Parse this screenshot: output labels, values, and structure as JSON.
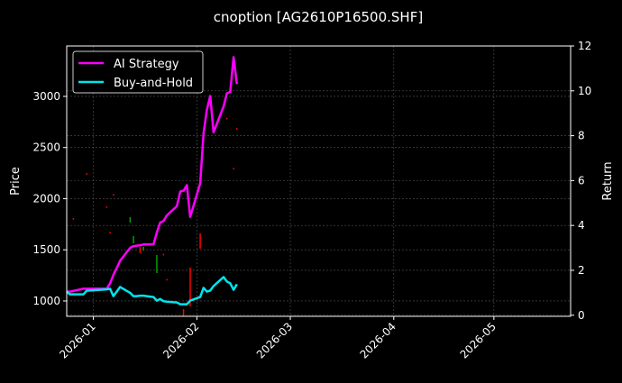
{
  "chart_data": {
    "type": "line",
    "title": "cnoption [AG2610P16500.SHF]",
    "xlabel": "",
    "ylabel_left": "Price",
    "ylabel_right": "Return",
    "xlim": [
      "2025-12-24",
      "2026-05-24"
    ],
    "ylim_left": [
      850,
      3493
    ],
    "ylim_right": [
      -0.05,
      12
    ],
    "x_ticks": [
      "2026-01-01",
      "2026-02-01",
      "2026-03-01",
      "2026-04-01",
      "2026-05-01"
    ],
    "x_tick_labels": [
      "2026-01",
      "2026-02",
      "2026-03",
      "2026-04",
      "2026-05"
    ],
    "y_left_ticks": [
      1000,
      1500,
      2000,
      2500,
      3000
    ],
    "y_right_ticks": [
      0,
      2,
      4,
      6,
      8,
      10,
      12
    ],
    "grid": true,
    "legend_position": "top-left",
    "background": "#000000",
    "x": [
      "2025-12-24",
      "2025-12-25",
      "2025-12-29",
      "2025-12-30",
      "2026-01-05",
      "2026-01-06",
      "2026-01-07",
      "2026-01-08",
      "2026-01-09",
      "2026-01-12",
      "2026-01-13",
      "2026-01-14",
      "2026-01-15",
      "2026-01-16",
      "2026-01-19",
      "2026-01-20",
      "2026-01-21",
      "2026-01-22",
      "2026-01-23",
      "2026-01-26",
      "2026-01-27",
      "2026-01-28",
      "2026-01-29",
      "2026-01-30",
      "2026-02-02",
      "2026-02-03",
      "2026-02-04",
      "2026-02-05",
      "2026-02-06",
      "2026-02-09",
      "2026-02-10",
      "2026-02-11",
      "2026-02-12",
      "2026-02-13"
    ],
    "series": [
      {
        "name": "AI Strategy",
        "color": "#ff00ff",
        "values": [
          1.05,
          1.05,
          1.18,
          1.18,
          1.18,
          1.42,
          1.8,
          2.1,
          2.43,
          3.0,
          3.08,
          3.1,
          3.12,
          3.15,
          3.16,
          3.69,
          4.13,
          4.2,
          4.45,
          4.86,
          5.51,
          5.55,
          5.8,
          4.38,
          5.88,
          8.1,
          9.16,
          9.77,
          8.15,
          9.3,
          9.89,
          9.95,
          11.5,
          10.3
        ]
      },
      {
        "name": "Buy-and-Hold",
        "color": "#00e5ee",
        "values": [
          1.05,
          0.93,
          0.93,
          1.09,
          1.15,
          1.18,
          0.85,
          1.05,
          1.26,
          1.0,
          0.85,
          0.85,
          0.87,
          0.87,
          0.81,
          0.65,
          0.72,
          0.62,
          0.6,
          0.57,
          0.49,
          0.49,
          0.49,
          0.65,
          0.81,
          1.22,
          1.05,
          1.1,
          1.3,
          1.7,
          1.5,
          1.42,
          1.13,
          1.38
        ]
      }
    ],
    "candles": [
      {
        "date": "2025-12-26",
        "open": 1810,
        "close": 1795
      },
      {
        "date": "2025-12-30",
        "open": 2250,
        "close": 2235
      },
      {
        "date": "2026-01-05",
        "open": 1925,
        "close": 1910
      },
      {
        "date": "2026-01-06",
        "open": 1675,
        "close": 1660
      },
      {
        "date": "2026-01-07",
        "open": 2045,
        "close": 2030
      },
      {
        "date": "2026-01-12",
        "open": 1767,
        "close": 1820
      },
      {
        "date": "2026-01-13",
        "open": 1564,
        "close": 1634
      },
      {
        "date": "2026-01-15",
        "open": 1530,
        "close": 1467
      },
      {
        "date": "2026-01-16",
        "open": 1493,
        "close": 1530
      },
      {
        "date": "2026-01-20",
        "open": 1273,
        "close": 1449
      },
      {
        "date": "2026-01-22",
        "open": 1460,
        "close": 1445
      },
      {
        "date": "2026-01-23",
        "open": 1215,
        "close": 1200
      },
      {
        "date": "2026-01-28",
        "open": 920,
        "close": 850
      },
      {
        "date": "2026-01-30",
        "open": 1326,
        "close": 947
      },
      {
        "date": "2026-02-02",
        "open": 1661,
        "close": 1511
      },
      {
        "date": "2026-02-10",
        "open": 2790,
        "close": 2775
      },
      {
        "date": "2026-02-12",
        "open": 2300,
        "close": 2285
      },
      {
        "date": "2026-02-13",
        "open": 2690,
        "close": 2675
      }
    ],
    "candle_colors": {
      "up": "#00a000",
      "down": "#ff0000"
    }
  }
}
